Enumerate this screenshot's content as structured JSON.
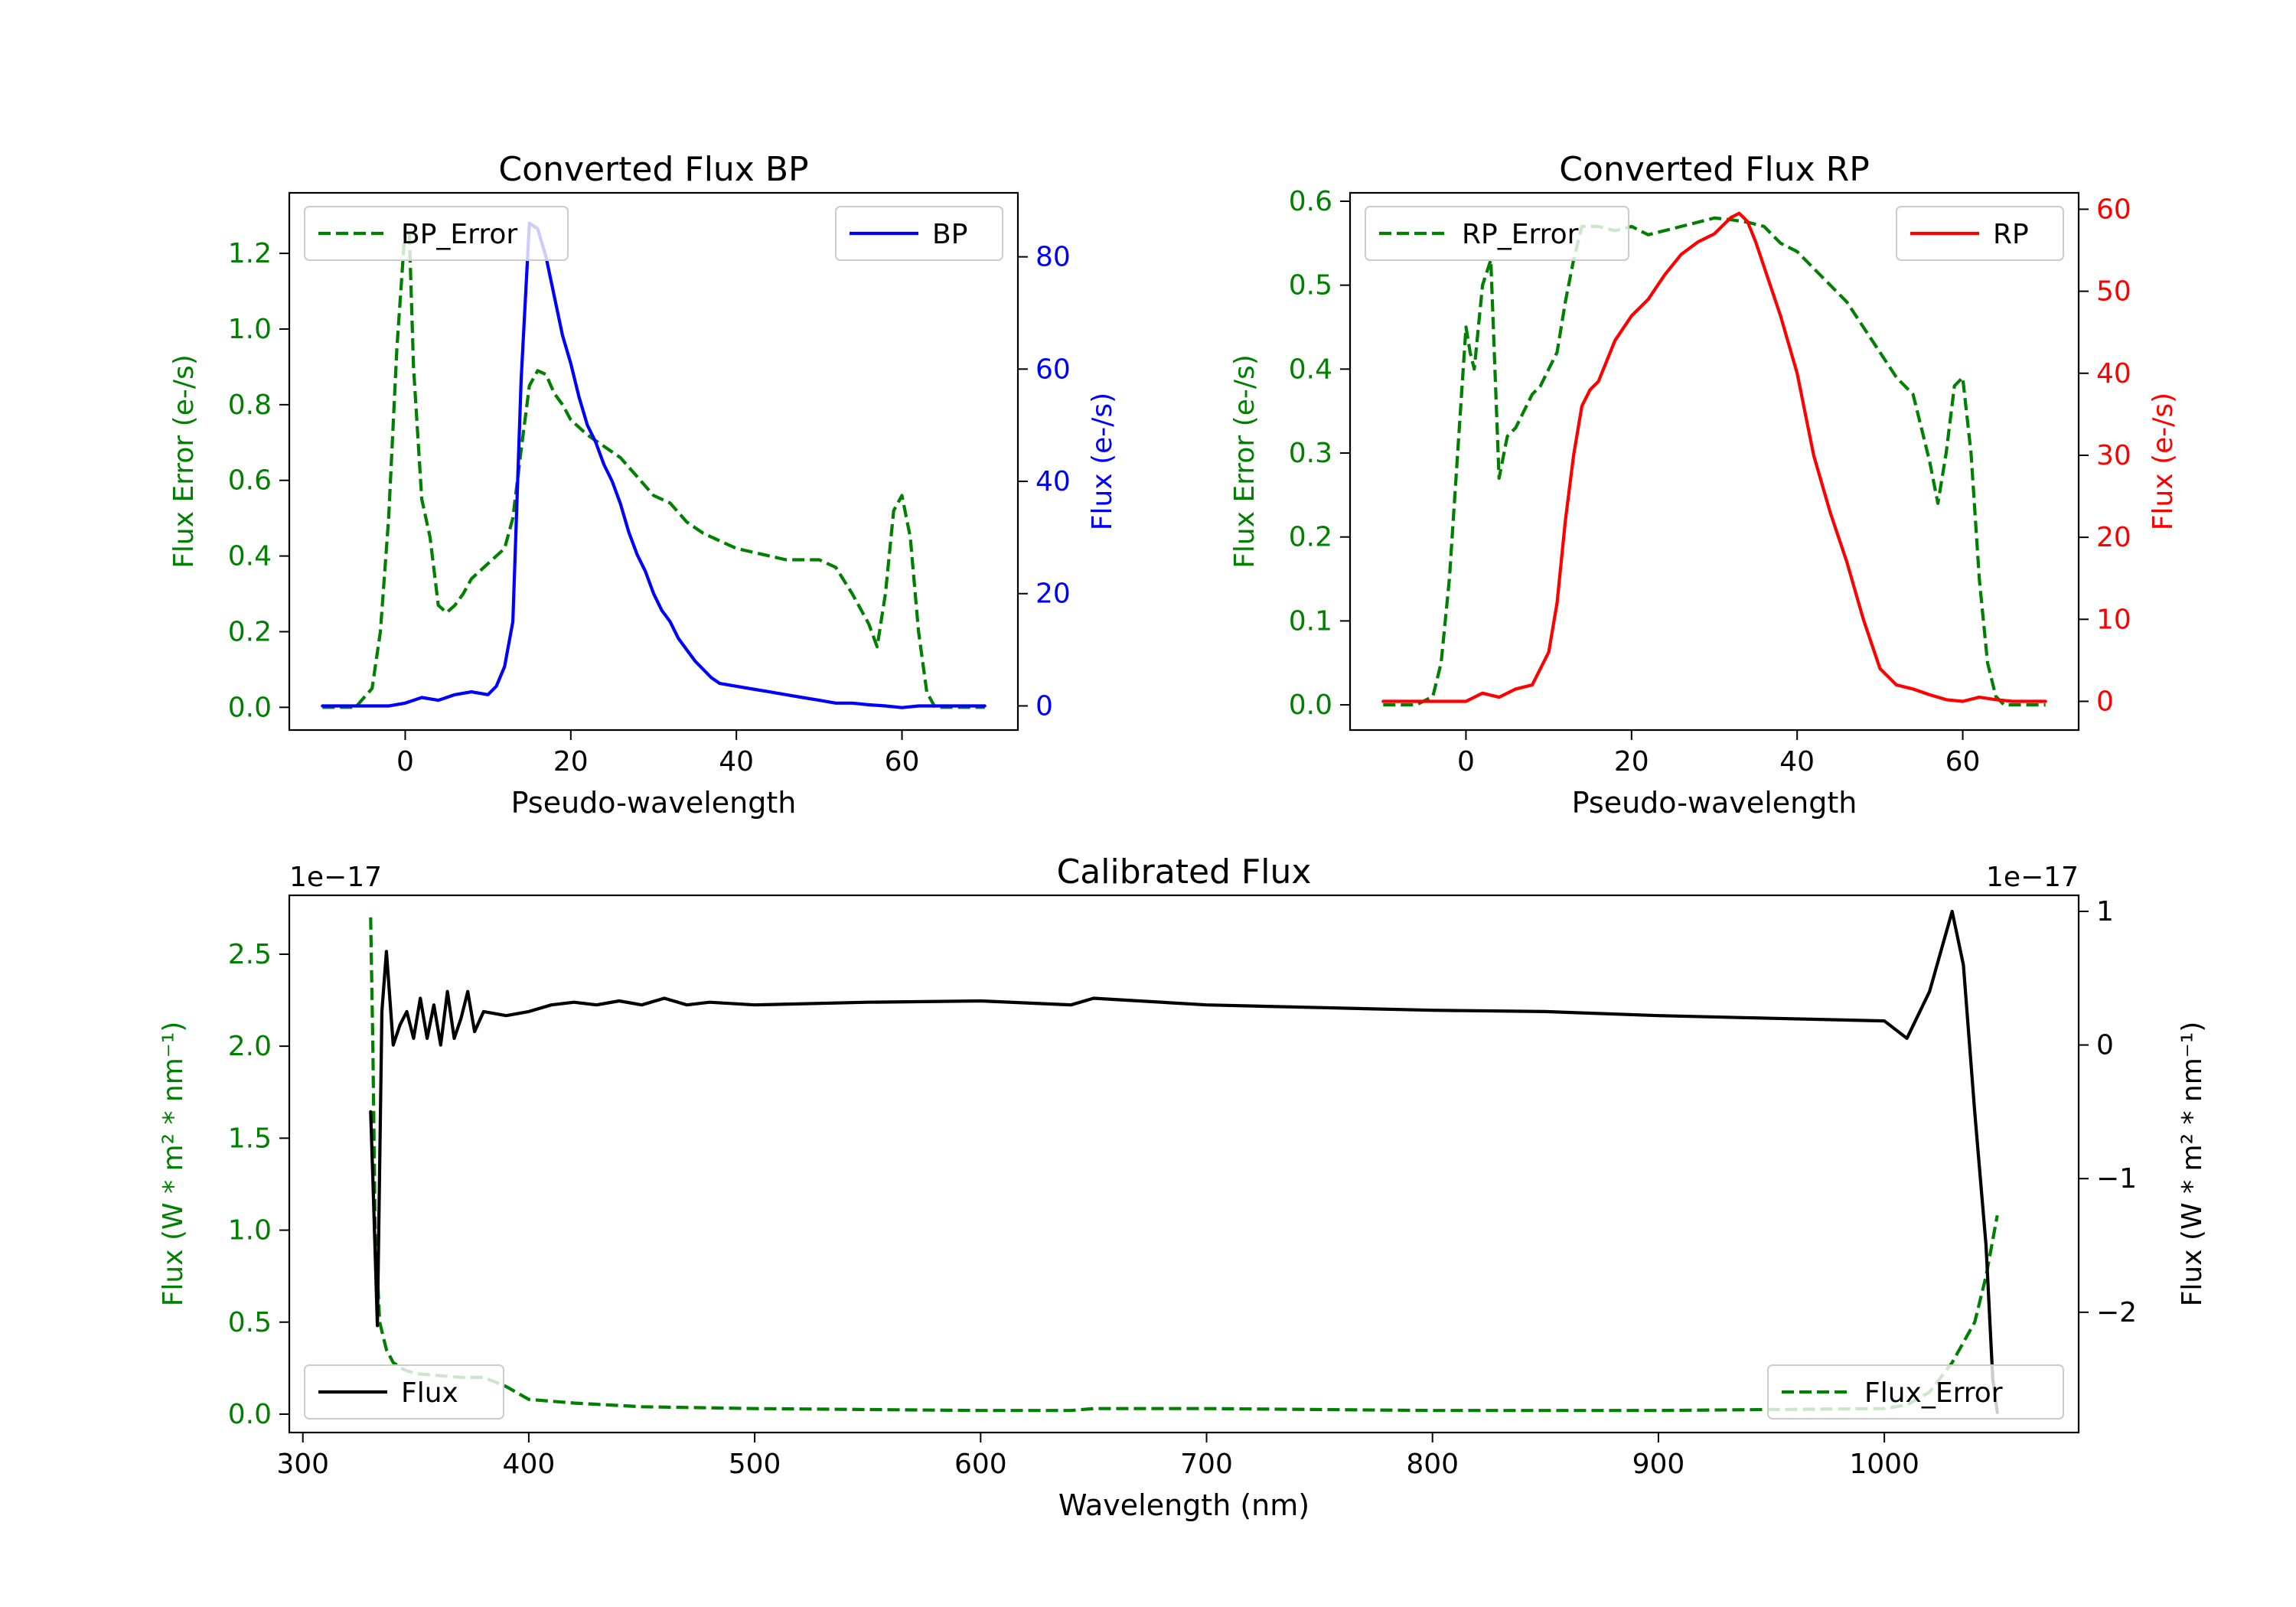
{
  "colors": {
    "axis": "#000000",
    "green": "#008000",
    "blue": "#0000ff",
    "red": "#ff0000",
    "black": "#000000"
  },
  "chart_data": [
    {
      "id": "bp",
      "type": "line",
      "title": "Converted Flux BP",
      "xlabel": "Pseudo-wavelength",
      "ylabel_left": "Flux Error (e-/s)",
      "ylabel_right": "Flux (e-/s)",
      "xlim": [
        -14,
        74
      ],
      "ylim_left": [
        -0.06,
        1.36
      ],
      "ylim_right": [
        -4.3,
        91.4
      ],
      "xticks": [
        0,
        20,
        40,
        60
      ],
      "xtick_labels": [
        "0",
        "20",
        "40",
        "60"
      ],
      "yticks_left": [
        0.0,
        0.2,
        0.4,
        0.6,
        0.8,
        1.0,
        1.2
      ],
      "yticks_left_labels": [
        "0.0",
        "0.2",
        "0.4",
        "0.6",
        "0.8",
        "1.0",
        "1.2"
      ],
      "yticks_right": [
        0,
        20,
        40,
        60,
        80
      ],
      "yticks_right_labels": [
        "0",
        "20",
        "40",
        "60",
        "80"
      ],
      "series": [
        {
          "name": "BP_Error",
          "axis": "left",
          "style": "dashed",
          "color": "#008000",
          "x": [
            -10,
            -6,
            -4,
            -3,
            -2,
            -1,
            0,
            0.5,
            1,
            2,
            3,
            4,
            5,
            6,
            7,
            8,
            9,
            10,
            11,
            12,
            13,
            14,
            15,
            16,
            17,
            18,
            19,
            20,
            22,
            24,
            26,
            28,
            30,
            32,
            34,
            36,
            38,
            40,
            42,
            44,
            46,
            48,
            50,
            52,
            54,
            55,
            56,
            57,
            58,
            59,
            60,
            61,
            62,
            63,
            64,
            65,
            70
          ],
          "y": [
            0.0,
            0.0,
            0.05,
            0.2,
            0.5,
            0.95,
            1.27,
            1.25,
            0.9,
            0.55,
            0.45,
            0.27,
            0.25,
            0.27,
            0.3,
            0.34,
            0.36,
            0.38,
            0.4,
            0.42,
            0.5,
            0.68,
            0.85,
            0.89,
            0.88,
            0.83,
            0.8,
            0.76,
            0.72,
            0.69,
            0.66,
            0.61,
            0.56,
            0.54,
            0.49,
            0.46,
            0.44,
            0.42,
            0.41,
            0.4,
            0.39,
            0.39,
            0.39,
            0.37,
            0.3,
            0.26,
            0.22,
            0.16,
            0.3,
            0.52,
            0.56,
            0.45,
            0.2,
            0.04,
            0.0,
            0.0,
            0.0
          ]
        },
        {
          "name": "BP",
          "axis": "right",
          "style": "solid",
          "color": "#0000ff",
          "x": [
            -10,
            -6,
            -2,
            0,
            2,
            4,
            6,
            8,
            10,
            11,
            12,
            13,
            14,
            15,
            16,
            17,
            18,
            19,
            20,
            21,
            22,
            23,
            24,
            25,
            26,
            27,
            28,
            29,
            30,
            31,
            32,
            33,
            34,
            35,
            36,
            37,
            38,
            40,
            42,
            44,
            46,
            48,
            50,
            52,
            54,
            56,
            58,
            60,
            62,
            64,
            66,
            70
          ],
          "y": [
            0,
            0,
            0,
            0.5,
            1.5,
            1.0,
            2.0,
            2.5,
            2.0,
            3.5,
            7.0,
            15.0,
            58.0,
            86.0,
            85.0,
            80.0,
            73.0,
            66.0,
            61.0,
            55.0,
            50.0,
            47.0,
            43.0,
            40.0,
            36.0,
            31.0,
            27.0,
            24.0,
            20.0,
            17.0,
            15.0,
            12.0,
            10.0,
            8.0,
            6.5,
            5.0,
            4.0,
            3.5,
            3.0,
            2.5,
            2.0,
            1.5,
            1.0,
            0.5,
            0.5,
            0.2,
            0.0,
            -0.3,
            0.0,
            0.0,
            0.0,
            0.0
          ]
        }
      ],
      "legend": [
        {
          "label": "BP_Error",
          "location": "upper-left"
        },
        {
          "label": "BP",
          "location": "upper-right"
        }
      ]
    },
    {
      "id": "rp",
      "type": "line",
      "title": "Converted Flux RP",
      "xlabel": "Pseudo-wavelength",
      "ylabel_left": "Flux Error (e-/s)",
      "ylabel_right": "Flux (e-/s)",
      "xlim": [
        -14,
        74
      ],
      "ylim_left": [
        -0.03,
        0.61
      ],
      "ylim_right": [
        -3.5,
        62.0
      ],
      "xticks": [
        0,
        20,
        40,
        60
      ],
      "xtick_labels": [
        "0",
        "20",
        "40",
        "60"
      ],
      "yticks_left": [
        0.0,
        0.1,
        0.2,
        0.3,
        0.4,
        0.5,
        0.6
      ],
      "yticks_left_labels": [
        "0.0",
        "0.1",
        "0.2",
        "0.3",
        "0.4",
        "0.5",
        "0.6"
      ],
      "yticks_right": [
        0,
        10,
        20,
        30,
        40,
        50,
        60
      ],
      "yticks_right_labels": [
        "0",
        "10",
        "20",
        "30",
        "40",
        "50",
        "60"
      ],
      "series": [
        {
          "name": "RP_Error",
          "axis": "left",
          "style": "dashed",
          "color": "#008000",
          "x": [
            -10,
            -6,
            -4,
            -3,
            -2,
            -1,
            0,
            0.5,
            1,
            2,
            3,
            4,
            5,
            6,
            7,
            8,
            9,
            10,
            11,
            12,
            13,
            14,
            16,
            18,
            20,
            22,
            24,
            26,
            28,
            30,
            32,
            34,
            36,
            38,
            40,
            42,
            44,
            46,
            48,
            50,
            52,
            54,
            55,
            56,
            57,
            58,
            59,
            60,
            61,
            62,
            63,
            64,
            65,
            70
          ],
          "y": [
            0.0,
            0.0,
            0.01,
            0.05,
            0.15,
            0.3,
            0.45,
            0.42,
            0.4,
            0.5,
            0.53,
            0.27,
            0.32,
            0.33,
            0.35,
            0.37,
            0.38,
            0.4,
            0.42,
            0.48,
            0.53,
            0.57,
            0.57,
            0.565,
            0.57,
            0.56,
            0.565,
            0.57,
            0.575,
            0.58,
            0.578,
            0.575,
            0.57,
            0.55,
            0.54,
            0.52,
            0.5,
            0.48,
            0.45,
            0.42,
            0.39,
            0.37,
            0.33,
            0.29,
            0.24,
            0.3,
            0.38,
            0.39,
            0.3,
            0.15,
            0.05,
            0.01,
            0.0,
            0.0
          ]
        },
        {
          "name": "RP",
          "axis": "right",
          "style": "solid",
          "color": "#ff0000",
          "x": [
            -10,
            -6,
            -2,
            0,
            2,
            4,
            6,
            8,
            10,
            11,
            12,
            13,
            14,
            15,
            16,
            18,
            20,
            22,
            24,
            26,
            28,
            30,
            32,
            33,
            34,
            35,
            36,
            37,
            38,
            40,
            42,
            44,
            46,
            48,
            50,
            52,
            54,
            56,
            58,
            60,
            62,
            64,
            66,
            70
          ],
          "y": [
            0,
            0,
            0,
            0,
            1.0,
            0.5,
            1.5,
            2.0,
            6.0,
            12.0,
            22.0,
            30.0,
            36.0,
            38.0,
            39.0,
            44.0,
            47.0,
            49.0,
            52.0,
            54.5,
            56.0,
            57.0,
            59.0,
            59.5,
            58.5,
            56.0,
            53.0,
            50.0,
            47.0,
            40.0,
            30.0,
            23.0,
            17.0,
            10.0,
            4.0,
            2.0,
            1.5,
            0.8,
            0.2,
            0.0,
            0.5,
            0.2,
            0.0,
            0.0
          ]
        }
      ],
      "legend": [
        {
          "label": "RP_Error",
          "location": "upper-left"
        },
        {
          "label": "RP",
          "location": "upper-right"
        }
      ]
    },
    {
      "id": "cal",
      "type": "line",
      "title": "Calibrated Flux",
      "xlabel": "Wavelength (nm)",
      "ylabel_left": "Flux (W * m² * nm⁻¹)",
      "ylabel_right": "Flux (W * m² * nm⁻¹)",
      "offset_label_left": "1e−17",
      "offset_label_right": "1e−17",
      "xlim": [
        294,
        1086
      ],
      "ylim_left": [
        -0.1,
        2.82
      ],
      "ylim_right": [
        -2.9,
        1.12
      ],
      "xticks": [
        300,
        400,
        500,
        600,
        700,
        800,
        900,
        1000
      ],
      "xtick_labels": [
        "300",
        "400",
        "500",
        "600",
        "700",
        "800",
        "900",
        "1000"
      ],
      "yticks_left": [
        0.0,
        0.5,
        1.0,
        1.5,
        2.0,
        2.5
      ],
      "yticks_left_labels": [
        "0.0",
        "0.5",
        "1.0",
        "1.5",
        "2.0",
        "2.5"
      ],
      "yticks_right": [
        -2,
        -1,
        0,
        1
      ],
      "yticks_right_labels": [
        "−2",
        "−1",
        "0",
        "1"
      ],
      "series": [
        {
          "name": "Flux_Error",
          "axis": "left",
          "style": "dashed",
          "color": "#008000",
          "x": [
            330,
            331,
            332,
            334,
            337,
            340,
            345,
            350,
            360,
            370,
            380,
            390,
            400,
            420,
            450,
            500,
            600,
            640,
            650,
            700,
            800,
            900,
            1000,
            1010,
            1020,
            1030,
            1040,
            1045,
            1050
          ],
          "y": [
            2.7,
            2.0,
            1.0,
            0.5,
            0.35,
            0.28,
            0.24,
            0.22,
            0.21,
            0.2,
            0.2,
            0.15,
            0.08,
            0.06,
            0.04,
            0.03,
            0.02,
            0.02,
            0.03,
            0.03,
            0.02,
            0.02,
            0.03,
            0.05,
            0.12,
            0.28,
            0.5,
            0.75,
            1.08
          ]
        },
        {
          "name": "Flux",
          "axis": "right",
          "style": "solid",
          "color": "#000000",
          "x": [
            330,
            331,
            333,
            335,
            337,
            340,
            343,
            346,
            349,
            352,
            355,
            358,
            361,
            364,
            367,
            370,
            373,
            376,
            380,
            390,
            400,
            410,
            420,
            430,
            440,
            450,
            460,
            470,
            480,
            500,
            550,
            600,
            640,
            650,
            700,
            750,
            800,
            850,
            900,
            950,
            1000,
            1010,
            1020,
            1030,
            1035,
            1040,
            1045,
            1048,
            1050
          ],
          "y": [
            -0.5,
            -1.0,
            -2.1,
            0.25,
            0.7,
            0.0,
            0.15,
            0.25,
            0.05,
            0.35,
            0.05,
            0.3,
            0.0,
            0.4,
            0.05,
            0.2,
            0.4,
            0.1,
            0.25,
            0.22,
            0.25,
            0.3,
            0.32,
            0.3,
            0.33,
            0.3,
            0.35,
            0.3,
            0.32,
            0.3,
            0.32,
            0.33,
            0.3,
            0.35,
            0.3,
            0.28,
            0.26,
            0.25,
            0.22,
            0.2,
            0.18,
            0.05,
            0.4,
            1.0,
            0.6,
            -0.5,
            -1.5,
            -2.5,
            -2.75
          ]
        }
      ],
      "legend": [
        {
          "label": "Flux",
          "location": "lower-left"
        },
        {
          "label": "Flux_Error",
          "location": "lower-right"
        }
      ]
    }
  ]
}
